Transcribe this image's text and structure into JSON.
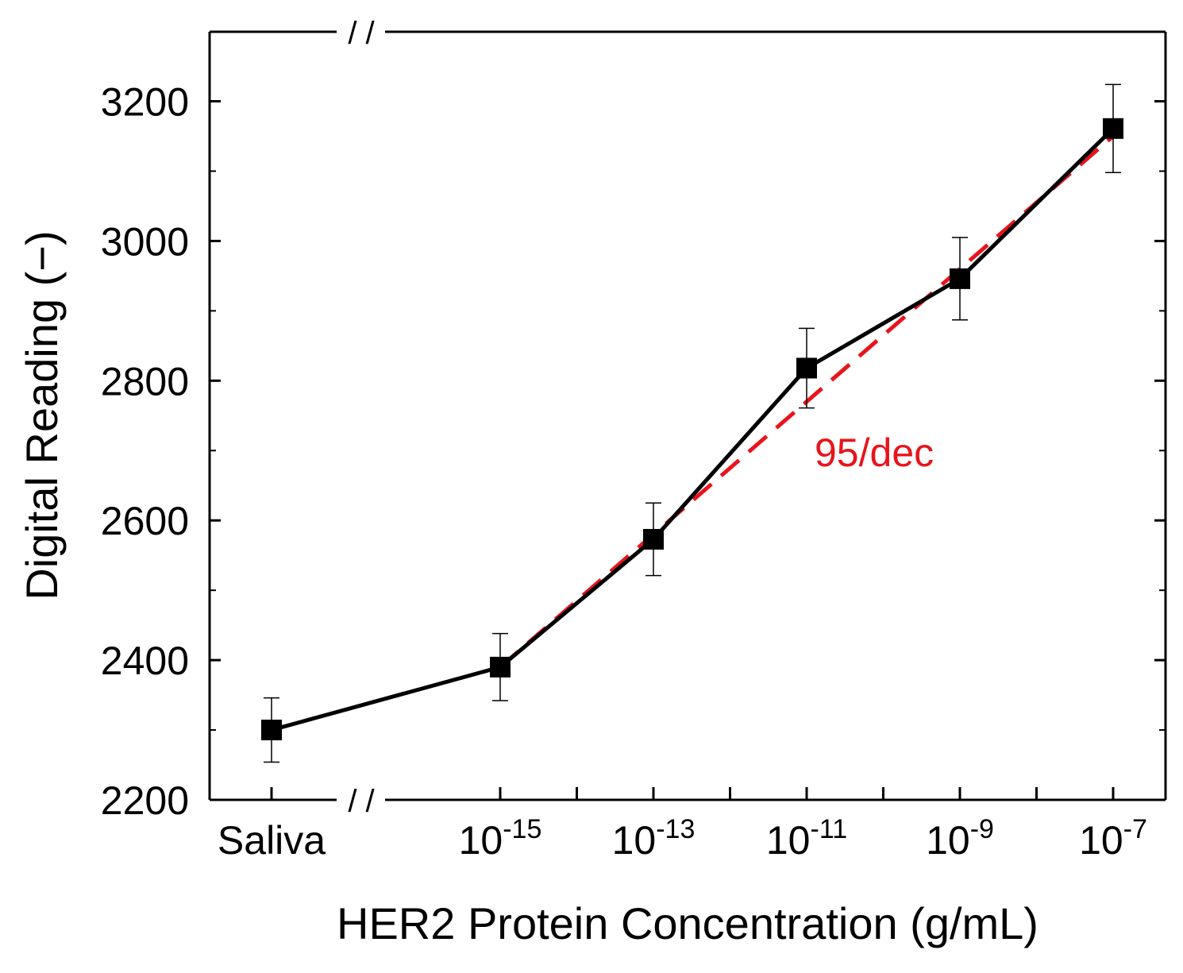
{
  "chart_data": {
    "type": "line",
    "title": "",
    "xlabel": "HER2 Protein Concentration (g/mL)",
    "ylabel": "Digital Reading (−)",
    "ylim": [
      2200,
      3300
    ],
    "yticks": [
      "2200",
      "2400",
      "2600",
      "2800",
      "3000",
      "3200"
    ],
    "categories": [
      {
        "label": "Saliva",
        "base": "",
        "exp": ""
      },
      {
        "label": "",
        "base": "10",
        "exp": "-15"
      },
      {
        "label": "",
        "base": "10",
        "exp": "-13"
      },
      {
        "label": "",
        "base": "10",
        "exp": "-11"
      },
      {
        "label": "",
        "base": "10",
        "exp": "-9"
      },
      {
        "label": "",
        "base": "10",
        "exp": "-7"
      }
    ],
    "x_exponents": [
      -15,
      -13,
      -11,
      -9,
      -7
    ],
    "axis_break_marker": "/ /",
    "series": [
      {
        "name": "Digital reading",
        "color": "#000000",
        "marker": "square",
        "values": [
          2300,
          2390,
          2573,
          2818,
          2946,
          3161
        ],
        "errors": [
          46,
          48,
          52,
          57,
          59,
          63
        ]
      }
    ],
    "fit": {
      "label": "95/dec",
      "color": "#e8141b",
      "style": "dashed",
      "x_from_exp": -15,
      "x_to_exp": -7,
      "y_start": 2390,
      "slope_per_decade": 95
    }
  }
}
